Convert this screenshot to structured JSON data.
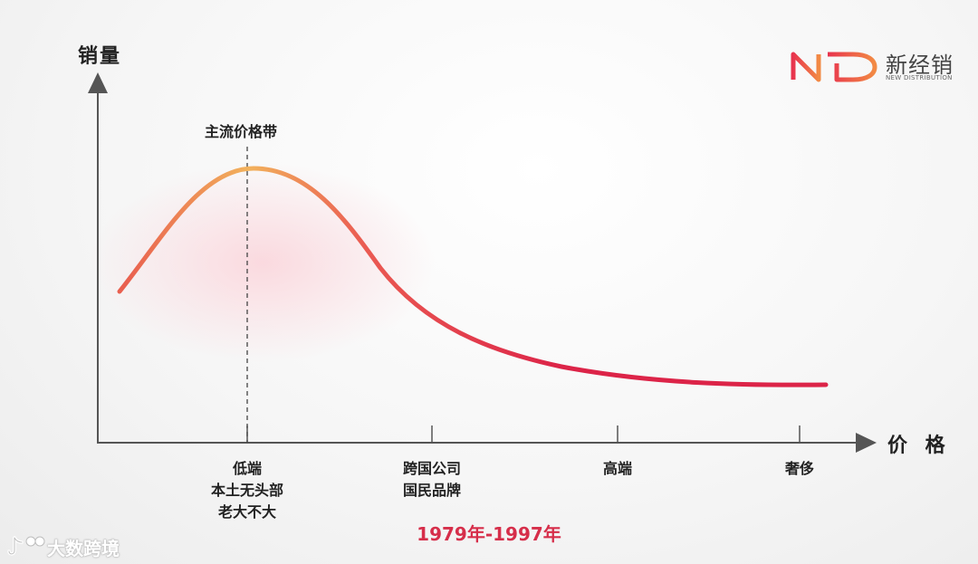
{
  "axes": {
    "y_label": "销量",
    "x_label": "价 格"
  },
  "peak_label": "主流价格带",
  "categories": [
    {
      "lines": [
        "低端",
        "本土无头部",
        "老大不大"
      ]
    },
    {
      "lines": [
        "跨国公司",
        "国民品牌"
      ]
    },
    {
      "lines": [
        "高端"
      ]
    },
    {
      "lines": [
        "奢侈"
      ]
    }
  ],
  "period": "1979年-1997年",
  "logo": {
    "cn": "新经销",
    "en": "NEW DISTRIBUTION"
  },
  "watermark": "大数跨境",
  "colors": {
    "curve_start": "#f2b25c",
    "curve_end": "#dc2448",
    "period_text": "#d62e4a",
    "axis": "#555555"
  },
  "icons": {
    "logo_mark": "nd-monogram",
    "watermark_mark": "tiktok-like-logo"
  }
}
